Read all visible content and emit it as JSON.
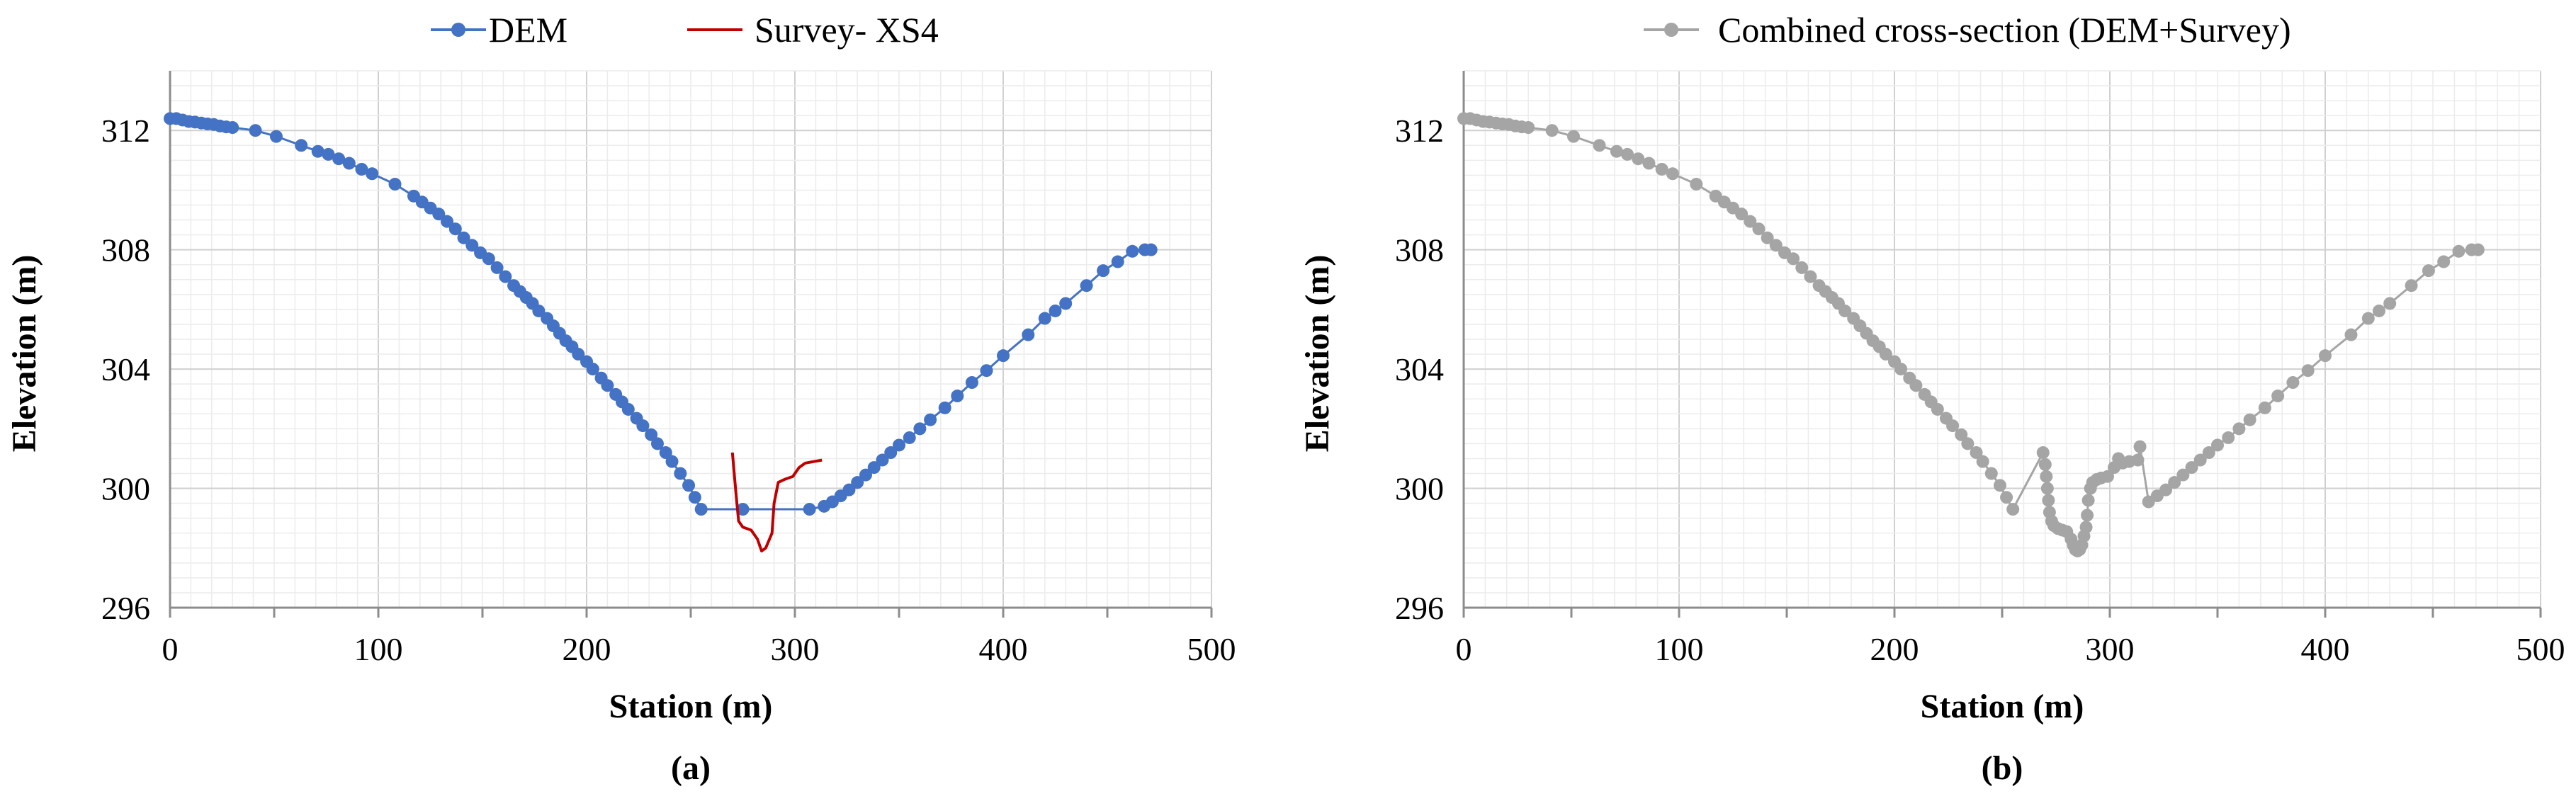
{
  "chart_data": [
    {
      "type": "line",
      "panel_label": "(a)",
      "xlabel": "Station (m)",
      "ylabel": "Elevation (m)",
      "xlim": [
        0,
        500
      ],
      "ylim": [
        296,
        314
      ],
      "x_ticks": [
        0,
        100,
        200,
        300,
        400,
        500
      ],
      "y_ticks": [
        296,
        300,
        304,
        308,
        312
      ],
      "grid": true,
      "legend_position": "top",
      "series": [
        {
          "name": "DEM",
          "color": "#4472C4",
          "markers": true,
          "points": [
            [
              0,
              312.4
            ],
            [
              3,
              312.4
            ],
            [
              6,
              312.35
            ],
            [
              9,
              312.3
            ],
            [
              12,
              312.28
            ],
            [
              15,
              312.25
            ],
            [
              18,
              312.22
            ],
            [
              21,
              312.2
            ],
            [
              24,
              312.15
            ],
            [
              27,
              312.12
            ],
            [
              30,
              312.1
            ],
            [
              41,
              312.0
            ],
            [
              51,
              311.8
            ],
            [
              63,
              311.5
            ],
            [
              71,
              311.3
            ],
            [
              76,
              311.2
            ],
            [
              81,
              311.05
            ],
            [
              86,
              310.9
            ],
            [
              92,
              310.7
            ],
            [
              97,
              310.55
            ],
            [
              108,
              310.2
            ],
            [
              117,
              309.8
            ],
            [
              121,
              309.6
            ],
            [
              125,
              309.4
            ],
            [
              129,
              309.2
            ],
            [
              133,
              308.95
            ],
            [
              137,
              308.7
            ],
            [
              141,
              308.4
            ],
            [
              145,
              308.15
            ],
            [
              149,
              307.9
            ],
            [
              153,
              307.7
            ],
            [
              157,
              307.4
            ],
            [
              161,
              307.1
            ],
            [
              165,
              306.8
            ],
            [
              168,
              306.6
            ],
            [
              171,
              306.4
            ],
            [
              174,
              306.2
            ],
            [
              177,
              305.95
            ],
            [
              181,
              305.7
            ],
            [
              184,
              305.45
            ],
            [
              187,
              305.2
            ],
            [
              190,
              304.95
            ],
            [
              193,
              304.75
            ],
            [
              196,
              304.5
            ],
            [
              200,
              304.25
            ],
            [
              203,
              304.0
            ],
            [
              207,
              303.7
            ],
            [
              210,
              303.45
            ],
            [
              214,
              303.15
            ],
            [
              217,
              302.9
            ],
            [
              220,
              302.65
            ],
            [
              224,
              302.35
            ],
            [
              227,
              302.1
            ],
            [
              231,
              301.8
            ],
            [
              234,
              301.5
            ],
            [
              238,
              301.2
            ],
            [
              241,
              300.9
            ],
            [
              245,
              300.5
            ],
            [
              249,
              300.1
            ],
            [
              252,
              299.7
            ],
            [
              255,
              299.3
            ],
            [
              275,
              299.3
            ],
            [
              307,
              299.3
            ],
            [
              314,
              299.4
            ],
            [
              318,
              299.55
            ],
            [
              322,
              299.75
            ],
            [
              326,
              299.95
            ],
            [
              330,
              300.2
            ],
            [
              334,
              300.45
            ],
            [
              338,
              300.7
            ],
            [
              342,
              300.95
            ],
            [
              346,
              301.2
            ],
            [
              350,
              301.45
            ],
            [
              355,
              301.7
            ],
            [
              360,
              302.0
            ],
            [
              365,
              302.3
            ],
            [
              372,
              302.7
            ],
            [
              378,
              303.1
            ],
            [
              385,
              303.55
            ],
            [
              392,
              303.95
            ],
            [
              400,
              304.45
            ],
            [
              412,
              305.15
            ],
            [
              420,
              305.7
            ],
            [
              425,
              305.95
            ],
            [
              430,
              306.2
            ],
            [
              440,
              306.8
            ],
            [
              448,
              307.3
            ],
            [
              455,
              307.6
            ],
            [
              462,
              307.95
            ],
            [
              468,
              308.0
            ],
            [
              471,
              308.0
            ]
          ]
        },
        {
          "name": "Survey- XS4",
          "color": "#C00000",
          "markers": false,
          "points": [
            [
              270,
              301.2
            ],
            [
              271,
              300.4
            ],
            [
              272,
              299.6
            ],
            [
              273,
              298.9
            ],
            [
              275,
              298.7
            ],
            [
              279,
              298.6
            ],
            [
              282,
              298.3
            ],
            [
              284,
              297.9
            ],
            [
              286,
              298.0
            ],
            [
              289,
              298.5
            ],
            [
              290,
              299.5
            ],
            [
              292,
              300.2
            ],
            [
              295,
              300.3
            ],
            [
              299,
              300.4
            ],
            [
              302,
              300.7
            ],
            [
              305,
              300.85
            ],
            [
              309,
              300.9
            ],
            [
              313,
              300.95
            ]
          ]
        }
      ]
    },
    {
      "type": "scatter",
      "panel_label": "(b)",
      "xlabel": "Station (m)",
      "ylabel": "Elevation (m)",
      "xlim": [
        0,
        500
      ],
      "ylim": [
        296,
        314
      ],
      "x_ticks": [
        0,
        100,
        200,
        300,
        400,
        500
      ],
      "y_ticks": [
        296,
        300,
        304,
        308,
        312
      ],
      "grid": true,
      "legend_position": "top",
      "series": [
        {
          "name": "Combined cross-section (DEM+Survey)",
          "color": "#A5A5A5",
          "markers": true,
          "points": [
            [
              0,
              312.4
            ],
            [
              3,
              312.4
            ],
            [
              6,
              312.35
            ],
            [
              9,
              312.3
            ],
            [
              12,
              312.28
            ],
            [
              15,
              312.25
            ],
            [
              18,
              312.22
            ],
            [
              21,
              312.2
            ],
            [
              24,
              312.15
            ],
            [
              27,
              312.12
            ],
            [
              30,
              312.1
            ],
            [
              41,
              312.0
            ],
            [
              51,
              311.8
            ],
            [
              63,
              311.5
            ],
            [
              71,
              311.3
            ],
            [
              76,
              311.2
            ],
            [
              81,
              311.05
            ],
            [
              86,
              310.9
            ],
            [
              92,
              310.7
            ],
            [
              97,
              310.55
            ],
            [
              108,
              310.2
            ],
            [
              117,
              309.8
            ],
            [
              121,
              309.6
            ],
            [
              125,
              309.4
            ],
            [
              129,
              309.2
            ],
            [
              133,
              308.95
            ],
            [
              137,
              308.7
            ],
            [
              141,
              308.4
            ],
            [
              145,
              308.15
            ],
            [
              149,
              307.9
            ],
            [
              153,
              307.7
            ],
            [
              157,
              307.4
            ],
            [
              161,
              307.1
            ],
            [
              165,
              306.8
            ],
            [
              168,
              306.6
            ],
            [
              171,
              306.4
            ],
            [
              174,
              306.2
            ],
            [
              177,
              305.95
            ],
            [
              181,
              305.7
            ],
            [
              184,
              305.45
            ],
            [
              187,
              305.2
            ],
            [
              190,
              304.95
            ],
            [
              193,
              304.75
            ],
            [
              196,
              304.5
            ],
            [
              200,
              304.25
            ],
            [
              203,
              304.0
            ],
            [
              207,
              303.7
            ],
            [
              210,
              303.45
            ],
            [
              214,
              303.15
            ],
            [
              217,
              302.9
            ],
            [
              220,
              302.65
            ],
            [
              224,
              302.35
            ],
            [
              227,
              302.1
            ],
            [
              231,
              301.8
            ],
            [
              234,
              301.5
            ],
            [
              238,
              301.2
            ],
            [
              241,
              300.9
            ],
            [
              245,
              300.5
            ],
            [
              249,
              300.1
            ],
            [
              252,
              299.7
            ],
            [
              255,
              299.3
            ],
            [
              269,
              301.2
            ],
            [
              270,
              300.8
            ],
            [
              270.5,
              300.4
            ],
            [
              271,
              300.0
            ],
            [
              271.5,
              299.6
            ],
            [
              272,
              299.2
            ],
            [
              273,
              298.9
            ],
            [
              274,
              298.75
            ],
            [
              276,
              298.65
            ],
            [
              278,
              298.6
            ],
            [
              280,
              298.55
            ],
            [
              282,
              298.3
            ],
            [
              283,
              298.1
            ],
            [
              284,
              297.95
            ],
            [
              285,
              297.9
            ],
            [
              286,
              297.95
            ],
            [
              287,
              298.1
            ],
            [
              288,
              298.4
            ],
            [
              289,
              298.7
            ],
            [
              289.5,
              299.1
            ],
            [
              290,
              299.6
            ],
            [
              291,
              300.0
            ],
            [
              292,
              300.2
            ],
            [
              294,
              300.3
            ],
            [
              296,
              300.35
            ],
            [
              299,
              300.4
            ],
            [
              302,
              300.7
            ],
            [
              304,
              301.0
            ],
            [
              306,
              300.85
            ],
            [
              309,
              300.9
            ],
            [
              313,
              300.95
            ],
            [
              314,
              301.4
            ],
            [
              318,
              299.55
            ],
            [
              322,
              299.75
            ],
            [
              326,
              299.95
            ],
            [
              330,
              300.2
            ],
            [
              334,
              300.45
            ],
            [
              338,
              300.7
            ],
            [
              342,
              300.95
            ],
            [
              346,
              301.2
            ],
            [
              350,
              301.45
            ],
            [
              355,
              301.7
            ],
            [
              360,
              302.0
            ],
            [
              365,
              302.3
            ],
            [
              372,
              302.7
            ],
            [
              378,
              303.1
            ],
            [
              385,
              303.55
            ],
            [
              392,
              303.95
            ],
            [
              400,
              304.45
            ],
            [
              412,
              305.15
            ],
            [
              420,
              305.7
            ],
            [
              425,
              305.95
            ],
            [
              430,
              306.2
            ],
            [
              440,
              306.8
            ],
            [
              448,
              307.3
            ],
            [
              455,
              307.6
            ],
            [
              462,
              307.95
            ],
            [
              468,
              308.0
            ],
            [
              471,
              308.0
            ]
          ]
        }
      ]
    }
  ]
}
